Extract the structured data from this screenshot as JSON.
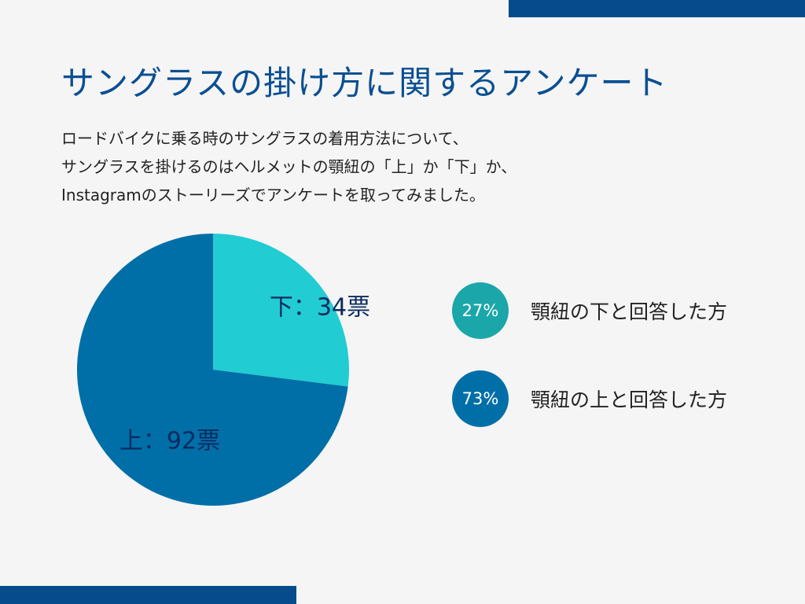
{
  "title": "サングラスの掛け方に関するアンケート",
  "description": [
    "ロードバイクに乗る時のサングラスの着用方法について、",
    "サングラスを掛けるのはヘルメットの顎紐の「上」か「下」か、",
    "Instagramのストーリーズでアンケートを取ってみました。"
  ],
  "chart_data": {
    "type": "pie",
    "slices": [
      {
        "label": "下：34票",
        "category": "下",
        "value": 34,
        "color": "#22ccd3"
      },
      {
        "label": "上：92票",
        "category": "上",
        "value": 92,
        "color": "#006fa8"
      }
    ]
  },
  "legend": [
    {
      "percent": "27%",
      "text": "顎紐の下と回答した方",
      "color": "#1ba7a9"
    },
    {
      "percent": "73%",
      "text": "顎紐の上と回答した方",
      "color": "#006fa8"
    }
  ],
  "colors": {
    "accent_bar": "#064b8c",
    "title": "#0a4f92",
    "background": "#f5f5f5"
  }
}
